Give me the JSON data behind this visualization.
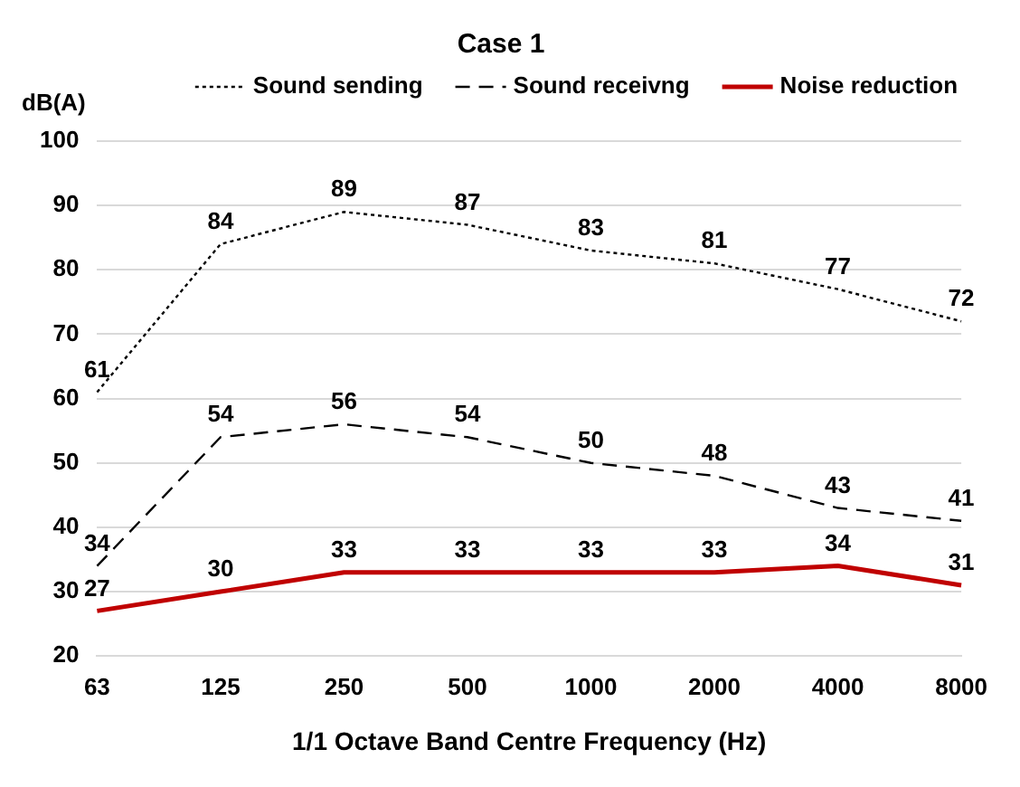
{
  "chart_data": {
    "type": "line",
    "title": "Case 1",
    "ylabel": "dB(A)",
    "xlabel": "1/1 Octave Band Centre Frequency (Hz)",
    "categories": [
      "63",
      "125",
      "250",
      "500",
      "1000",
      "2000",
      "4000",
      "8000"
    ],
    "series": [
      {
        "name": "Sound sending",
        "color": "#000000",
        "line_style": "dotted",
        "values": [
          61,
          84,
          89,
          87,
          83,
          81,
          77,
          72
        ]
      },
      {
        "name": "Sound receivng",
        "color": "#000000",
        "line_style": "dashed",
        "values": [
          34,
          54,
          56,
          54,
          50,
          48,
          43,
          41
        ]
      },
      {
        "name": "Noise reduction",
        "color": "#c00000",
        "line_style": "solid",
        "values": [
          27,
          30,
          33,
          33,
          33,
          33,
          34,
          31
        ]
      }
    ],
    "ylim": [
      20,
      100
    ],
    "yticks": [
      20,
      30,
      40,
      50,
      60,
      70,
      80,
      90,
      100
    ],
    "grid": "y",
    "legend": "top",
    "marker": "none",
    "data_labels": true
  }
}
